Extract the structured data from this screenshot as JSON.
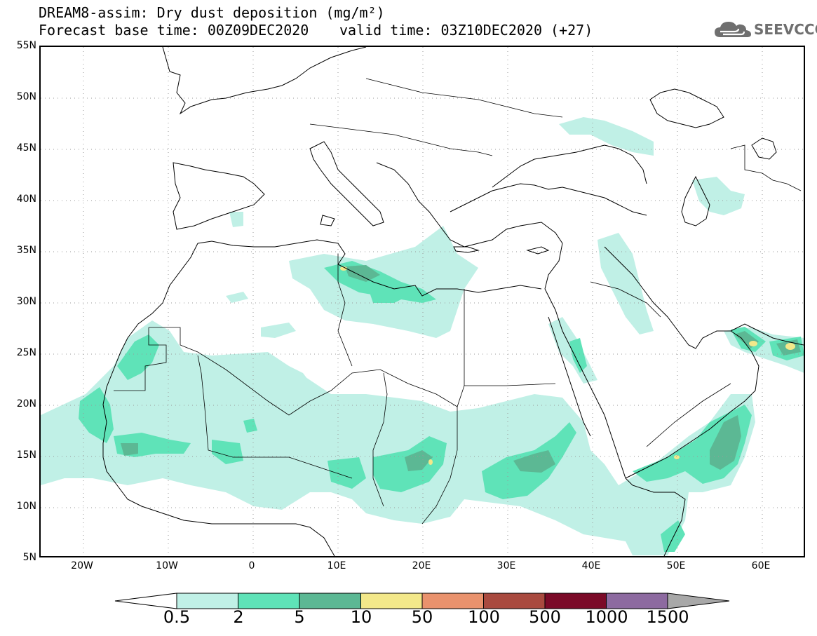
{
  "title": {
    "line1": "DREAM8-assim: Dry dust deposition (mg/m²)",
    "line2": "Forecast base time: 00Z09DEC2020",
    "valid": "valid time: 03Z10DEC2020 (+27)"
  },
  "logo": {
    "text": "SEEVCCC",
    "icon": "cloud-icon"
  },
  "map": {
    "lat_labels": [
      "55N",
      "50N",
      "45N",
      "40N",
      "35N",
      "30N",
      "25N",
      "20N",
      "15N",
      "10N",
      "5N"
    ],
    "lon_labels": [
      "20W",
      "10W",
      "0",
      "10E",
      "20E",
      "30E",
      "40E",
      "50E",
      "60E"
    ],
    "lat_range": [
      5,
      55
    ],
    "lon_range": [
      -25,
      65
    ],
    "grid": "dotted"
  },
  "legend": {
    "labels": [
      "0.5",
      "2",
      "5",
      "10",
      "50",
      "100",
      "500",
      "1000",
      "1500"
    ],
    "colors": [
      "#c0f0e6",
      "#5fe3b8",
      "#5cb894",
      "#f3e88a",
      "#e9926d",
      "#a94a3f",
      "#7b0a28",
      "#8d6aa0",
      "#a8a8a8"
    ]
  }
}
